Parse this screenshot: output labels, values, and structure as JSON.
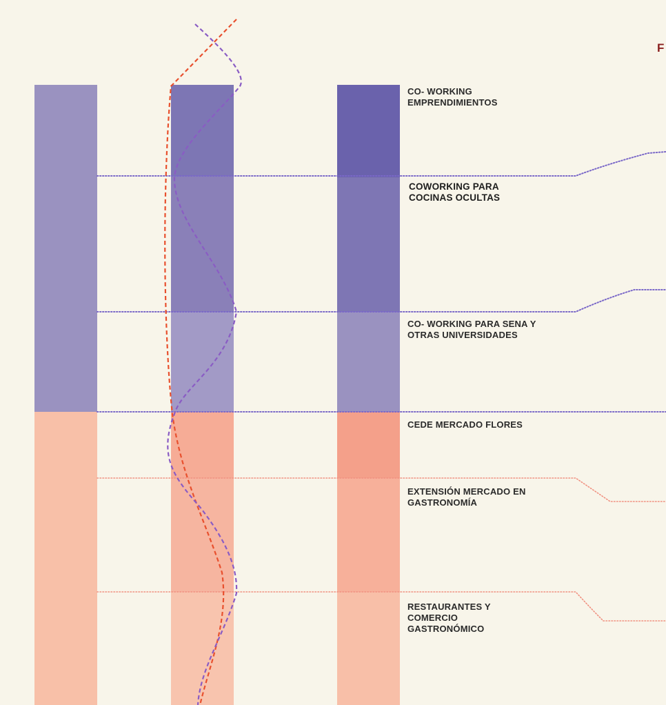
{
  "header": {
    "text": "F"
  },
  "colors": {
    "background": "#f8f5ea",
    "purple_light": "#9a92c0",
    "purple_mid": "#8a80b8",
    "purple_dark": "#6a62ac",
    "purple_line": "#7a68c8",
    "salmon_light": "#f8c0a8",
    "salmon_mid": "#f6ad95",
    "salmon_dark": "#f19e88",
    "salmon_line": "#f09080",
    "red_curve": "#e8502e",
    "purple_curve": "#8a5cc4"
  },
  "labels": [
    {
      "id": "coworking-emprendimientos",
      "text": "CO- WORKING\nEMPRENDIMIENTOS"
    },
    {
      "id": "coworking-cocinas",
      "text": "COWORKING PARA\nCOCINAS OCULTAS"
    },
    {
      "id": "coworking-sena",
      "text": "CO- WORKING PARA SENA Y\nOTRAS UNIVERSIDADES"
    },
    {
      "id": "cede-mercado",
      "text": "CEDE MERCADO FLORES"
    },
    {
      "id": "extension-mercado",
      "text": "EXTENSIÓN MERCADO EN\nGASTRONOMÍA"
    },
    {
      "id": "restaurantes",
      "text": "RESTAURANTES Y\nCOMERCIO\nGASTRONÓMICO"
    }
  ]
}
